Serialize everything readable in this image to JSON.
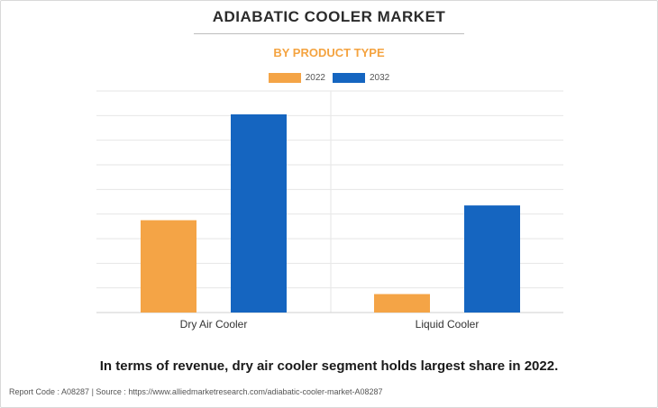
{
  "header": {
    "title": "ADIABATIC COOLER MARKET",
    "subtitle": "BY PRODUCT TYPE"
  },
  "colors": {
    "series_2022": "#f4a446",
    "series_2032": "#1565c0",
    "subtitle": "#f4a340",
    "grid": "#e6e6e6"
  },
  "chart_data": {
    "type": "bar",
    "title": "ADIABATIC COOLER MARKET",
    "subtitle": "BY PRODUCT TYPE",
    "categories": [
      "Dry Air Cooler",
      "Liquid Cooler"
    ],
    "series": [
      {
        "name": "2022",
        "values": [
          37.5,
          7.5
        ]
      },
      {
        "name": "2032",
        "values": [
          80.5,
          43.5
        ]
      }
    ],
    "ylim": [
      0,
      90
    ],
    "grid": true,
    "legend_position": "top-center",
    "xlabel": "",
    "ylabel": ""
  },
  "caption": "In terms of revenue, dry air cooler segment holds largest share in 2022.",
  "footer": "Report Code : A08287  |  Source : https://www.alliedmarketresearch.com/adiabatic-cooler-market-A08287"
}
